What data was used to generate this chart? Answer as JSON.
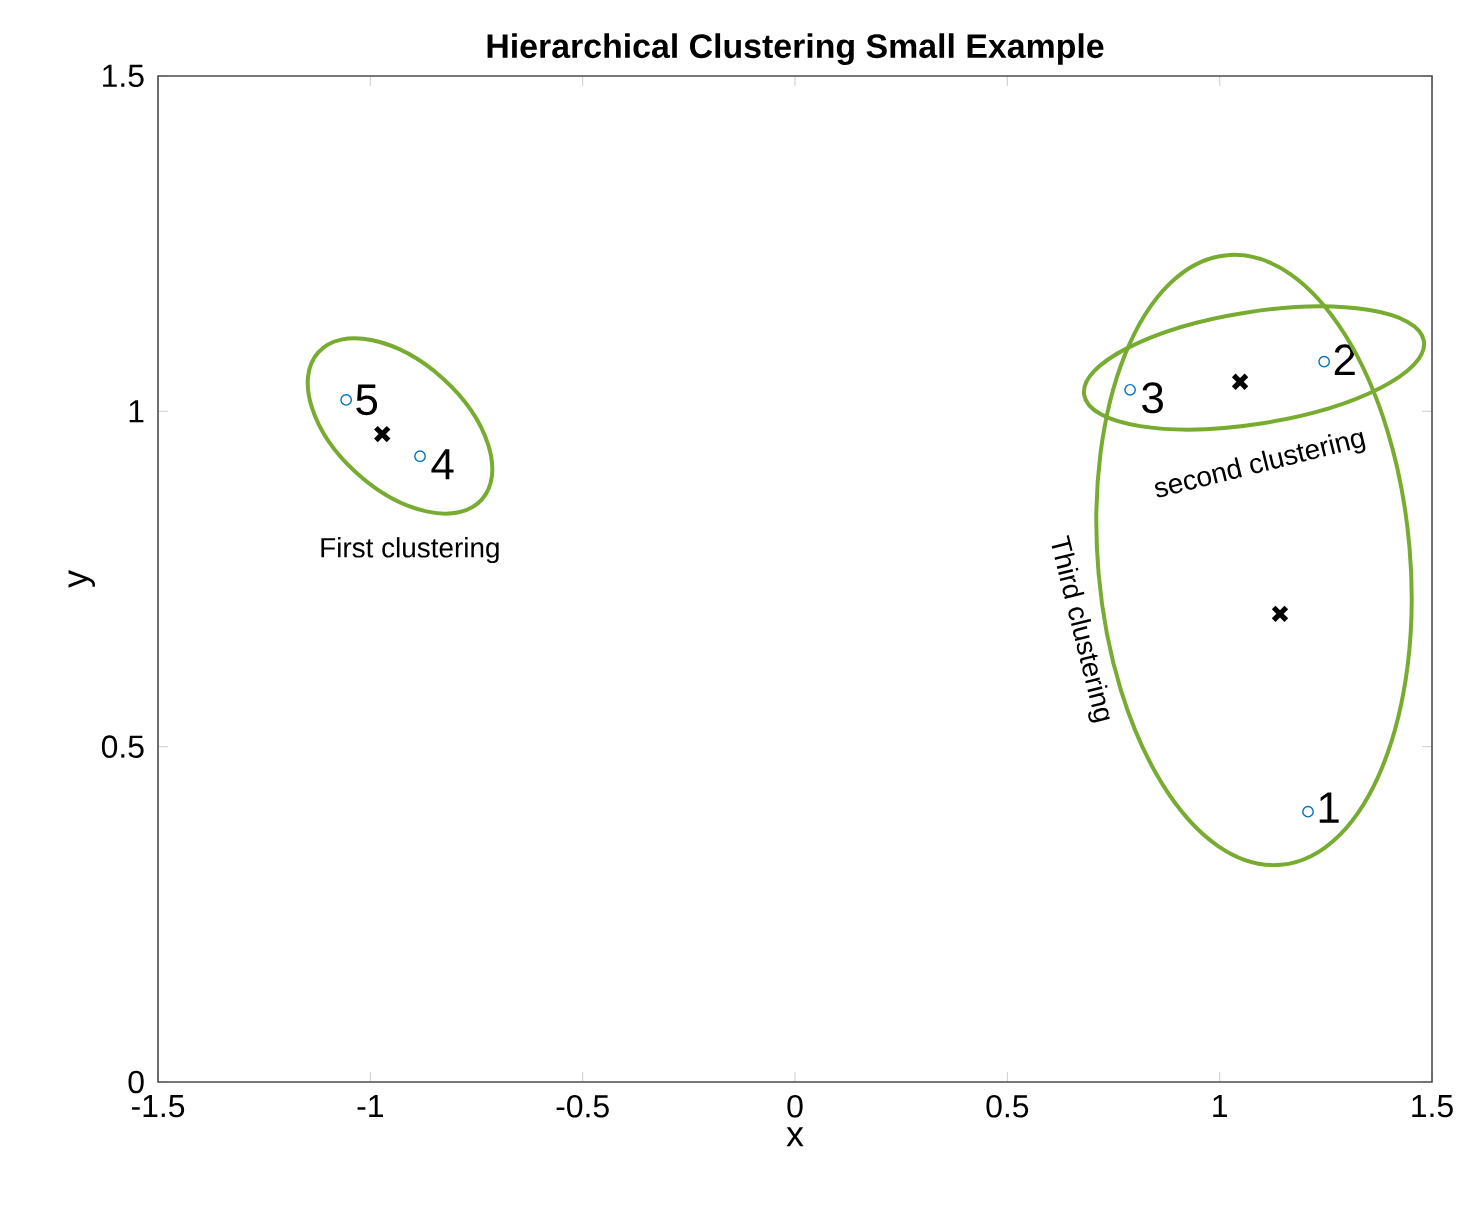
{
  "chart_data": {
    "type": "scatter",
    "title": "Hierarchical Clustering Small Example",
    "xlabel": "x",
    "ylabel": "y",
    "xlim": [
      -1.5,
      1.5
    ],
    "ylim": [
      0,
      1.5
    ],
    "xticks": [
      -1.5,
      -1,
      -0.5,
      0,
      0.5,
      1,
      1.5
    ],
    "yticks": [
      0,
      0.5,
      1,
      1.5
    ],
    "grid": false,
    "series": [
      {
        "marker": "circle",
        "color": "#0072bd",
        "x": [
          1.208,
          1.246,
          0.789,
          -0.883,
          -1.057
        ],
        "values": [
          0.403,
          1.074,
          1.032,
          0.933,
          1.017
        ]
      },
      {
        "marker": "cross",
        "color": "#000000",
        "x": [
          -0.972,
          1.048,
          1.142
        ],
        "values": [
          0.966,
          1.044,
          0.698
        ]
      }
    ],
    "annotations": [
      {
        "text": "1",
        "x": 1.208,
        "y": 0.403
      },
      {
        "text": "2",
        "x": 1.246,
        "y": 1.074
      },
      {
        "text": "3",
        "x": 0.789,
        "y": 1.032
      },
      {
        "text": "4",
        "x": -0.883,
        "y": 0.933
      },
      {
        "text": "5",
        "x": -1.057,
        "y": 1.017
      },
      "First clustering",
      "second clustering",
      "Third clustering"
    ]
  }
}
